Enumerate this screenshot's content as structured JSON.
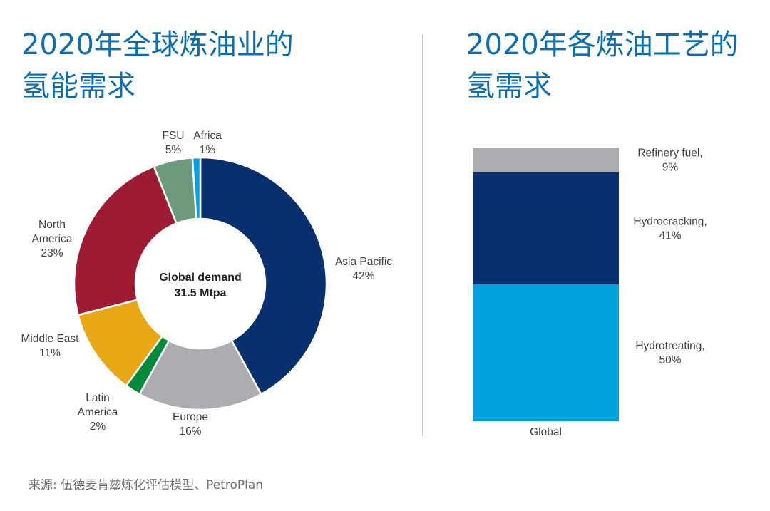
{
  "left_title": "2020年全球炼油业的\n氢能需求",
  "right_title": "2020年各炼油工艺的\n氢需求",
  "source": "来源: 伍德麦肯兹炼化评估模型、PetroPlan",
  "chart_data": [
    {
      "type": "pie",
      "variant": "donut",
      "center_label": [
        "Global demand",
        "31.5 Mtpa"
      ],
      "slices": [
        {
          "name": "Asia Pacific",
          "label": [
            "Asia Pacific",
            "42%"
          ],
          "value": 42,
          "color": "#08306f"
        },
        {
          "name": "Europe",
          "label": [
            "Europe",
            "16%"
          ],
          "value": 16,
          "color": "#adadb1"
        },
        {
          "name": "Latin America",
          "label": [
            "Latin",
            "America",
            "2%"
          ],
          "value": 2,
          "color": "#05893b"
        },
        {
          "name": "Middle East",
          "label": [
            "Middle East",
            "11%"
          ],
          "value": 11,
          "color": "#e8a816"
        },
        {
          "name": "North America",
          "label": [
            "North",
            "America",
            "23%"
          ],
          "value": 23,
          "color": "#9e1b34"
        },
        {
          "name": "FSU",
          "label": [
            "FSU",
            "5%"
          ],
          "value": 5,
          "color": "#6e9a7c"
        },
        {
          "name": "Africa",
          "label": [
            "Africa",
            "1%"
          ],
          "value": 1,
          "color": "#00a3e0"
        }
      ]
    },
    {
      "type": "bar",
      "variant": "stacked-100",
      "categories": [
        "Global"
      ],
      "series": [
        {
          "name": "Hydrotreating",
          "label": [
            "Hydrotreating,",
            "50%"
          ],
          "values": [
            50
          ],
          "color": "#00a3e0"
        },
        {
          "name": "Hydrocracking",
          "label": [
            "Hydrocracking,",
            "41%"
          ],
          "values": [
            41
          ],
          "color": "#08306f"
        },
        {
          "name": "Refinery fuel",
          "label": [
            "Refinery fuel,",
            "9%"
          ],
          "values": [
            9
          ],
          "color": "#adadb1"
        }
      ]
    }
  ]
}
